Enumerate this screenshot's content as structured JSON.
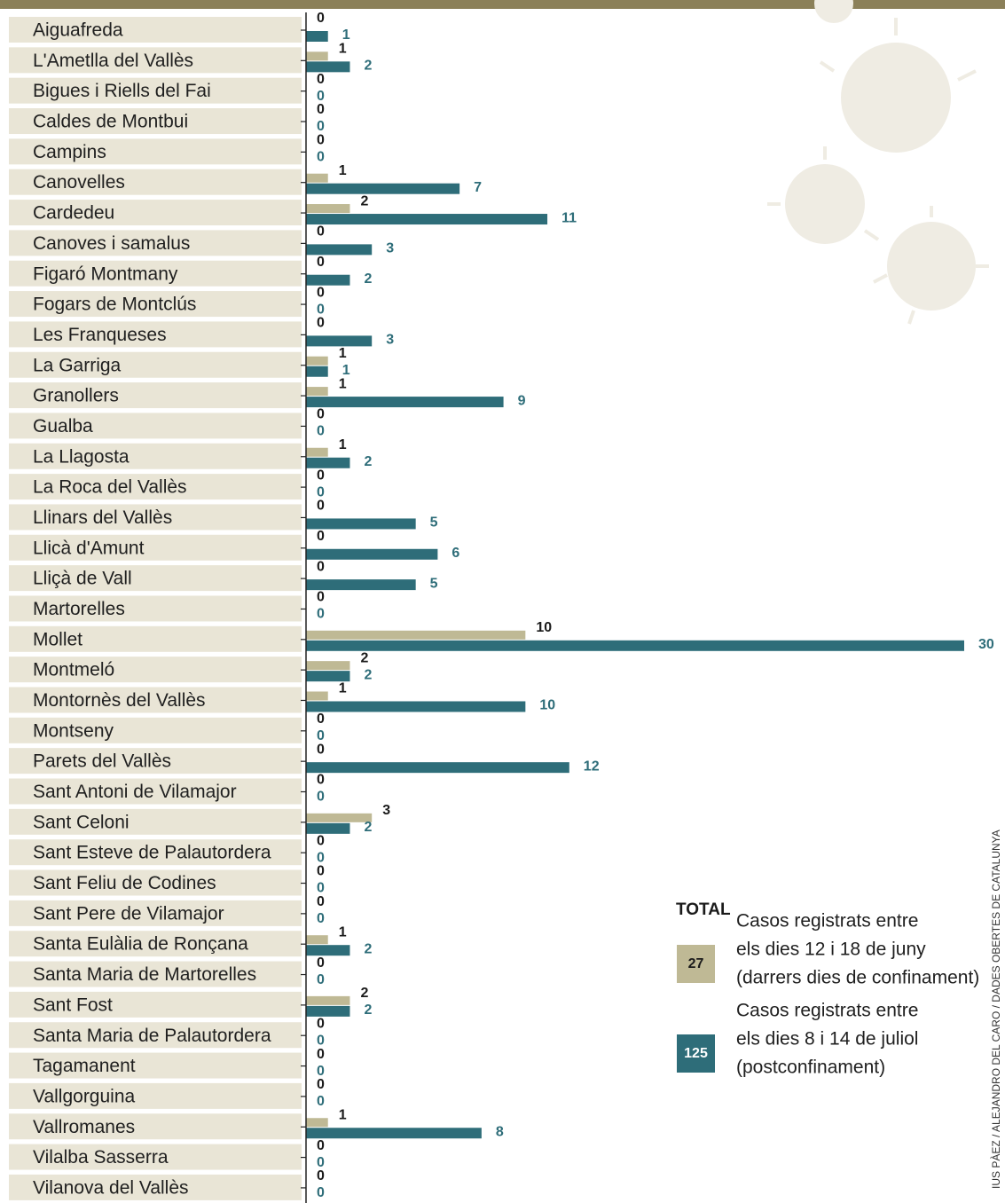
{
  "chart_data": {
    "type": "bar",
    "orientation": "horizontal",
    "categories": [
      "Aiguafreda",
      "L'Ametlla del Vallès",
      "Bigues i Riells del Fai",
      "Caldes de Montbui",
      "Campins",
      "Canovelles",
      "Cardedeu",
      "Canoves i samalus",
      "Figaró Montmany",
      "Fogars de Montclús",
      "Les Franqueses",
      "La Garriga",
      "Granollers",
      "Gualba",
      "La Llagosta",
      "La Roca del Vallès",
      "Llinars del Vallès",
      "Llicà d'Amunt",
      "Lliçà de Vall",
      "Martorelles",
      "Mollet",
      "Montmeló",
      "Montornès del Vallès",
      "Montseny",
      "Parets del Vallès",
      "Sant Antoni de Vilamajor",
      "Sant Celoni",
      "Sant Esteve de Palautordera",
      "Sant Feliu de Codines",
      "Sant Pere de Vilamajor",
      "Santa Eulàlia de Ronçana",
      "Santa Maria de Martorelles",
      "Sant Fost",
      "Santa Maria de Palautordera",
      "Tagamanent",
      "Vallgorguina",
      "Vallromanes",
      "Vilalba Sasserra",
      "Vilanova del Vallès"
    ],
    "series": [
      {
        "color": "#bfb995",
        "label_color": "#1a1a1a",
        "values": [
          0,
          1,
          0,
          0,
          0,
          1,
          2,
          0,
          0,
          0,
          0,
          1,
          1,
          0,
          1,
          0,
          0,
          0,
          0,
          0,
          10,
          2,
          1,
          0,
          0,
          0,
          3,
          0,
          0,
          0,
          1,
          0,
          2,
          0,
          0,
          0,
          1,
          0,
          0
        ]
      },
      {
        "color": "#2e6d79",
        "label_color": "#2e6d79",
        "values": [
          1,
          2,
          0,
          0,
          0,
          7,
          11,
          3,
          2,
          0,
          3,
          1,
          9,
          0,
          2,
          0,
          5,
          6,
          5,
          0,
          30,
          2,
          10,
          0,
          12,
          0,
          2,
          0,
          0,
          0,
          2,
          0,
          2,
          0,
          0,
          0,
          8,
          0,
          0
        ]
      }
    ],
    "xlim": [
      0,
      30
    ],
    "legend": {
      "title": "TOTAL",
      "items": [
        {
          "total": 27,
          "lines": [
            "Casos registrats entre",
            "els dies 12 i 18 de juny",
            "(darrers dies de confinament)"
          ]
        },
        {
          "total": 125,
          "lines": [
            "Casos registrats entre",
            "els dies 8 i 14 de juliol",
            "(postconfinament)"
          ]
        }
      ]
    },
    "source": "IUS PÀEZ / ALEJANDRO DEL CARO / DADES OBERTES DE CATALUNYA"
  }
}
